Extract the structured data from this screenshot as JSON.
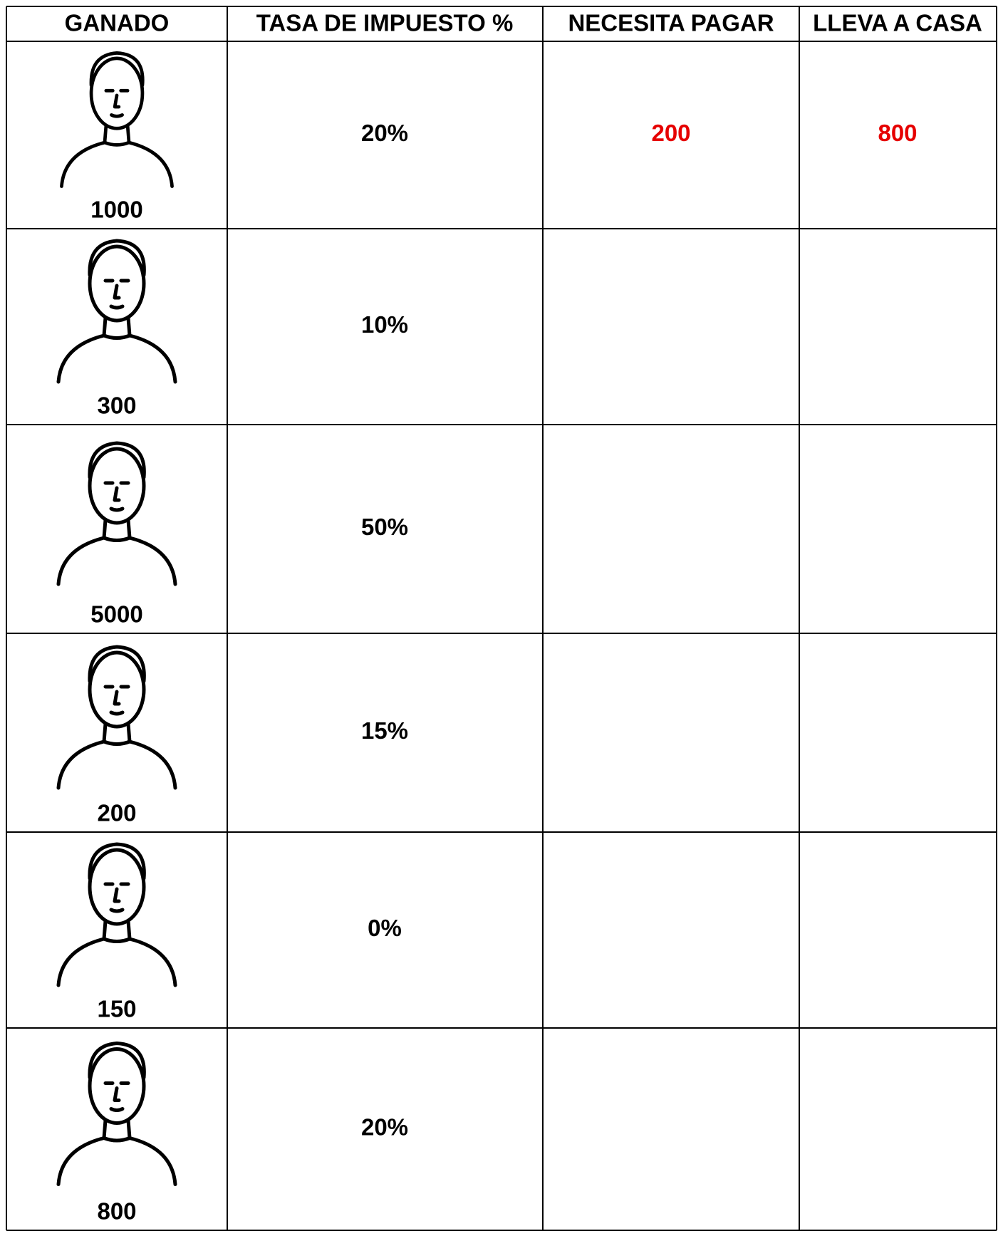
{
  "table": {
    "header": [
      "GANADO",
      "TASA DE IMPUESTO %",
      "NECESITA PAGAR",
      "LLEVA A CASA"
    ],
    "rows": [
      {
        "earned": 1000,
        "rate": "20%",
        "pay": 200,
        "take": 800
      },
      {
        "earned": 300,
        "rate": "10%"
      },
      {
        "earned": 5000,
        "rate": "50%"
      },
      {
        "earned": 200,
        "rate": "15%"
      },
      {
        "earned": 150,
        "rate": "0%"
      },
      {
        "earned": 800,
        "rate": "20%"
      }
    ]
  }
}
